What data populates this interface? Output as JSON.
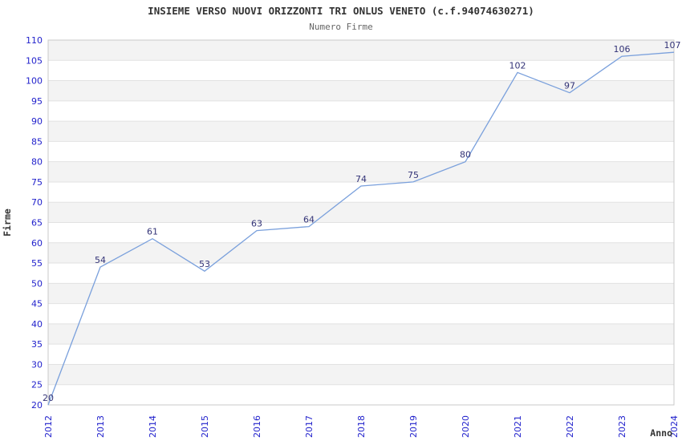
{
  "chart_data": {
    "type": "line",
    "title": "INSIEME VERSO NUOVI ORIZZONTI TRI ONLUS VENETO (c.f.94074630271)",
    "subtitle": "Numero Firme",
    "xlabel": "Anno",
    "ylabel": "Firme",
    "x": [
      "2012",
      "2013",
      "2014",
      "2015",
      "2016",
      "2017",
      "2018",
      "2019",
      "2020",
      "2021",
      "2022",
      "2023",
      "2024"
    ],
    "series": [
      {
        "name": "Numero Firme",
        "values": [
          20,
          54,
          61,
          53,
          63,
          64,
          74,
          75,
          80,
          102,
          97,
          106,
          107
        ]
      }
    ],
    "ylim": [
      20,
      110
    ],
    "ytick_step": 5,
    "grid": true,
    "banded_background": true,
    "data_labels": true,
    "legend_position": "none",
    "colors": {
      "line": "#7AA0DC",
      "tick_label": "#2222CC",
      "data_label": "#333377",
      "band": "#F3F3F3",
      "gridline": "#E2E2E2",
      "border": "#C9C9C9",
      "title": "#333333",
      "subtitle": "#666666",
      "axis_name": "#333333",
      "background": "#FFFFFF"
    }
  }
}
